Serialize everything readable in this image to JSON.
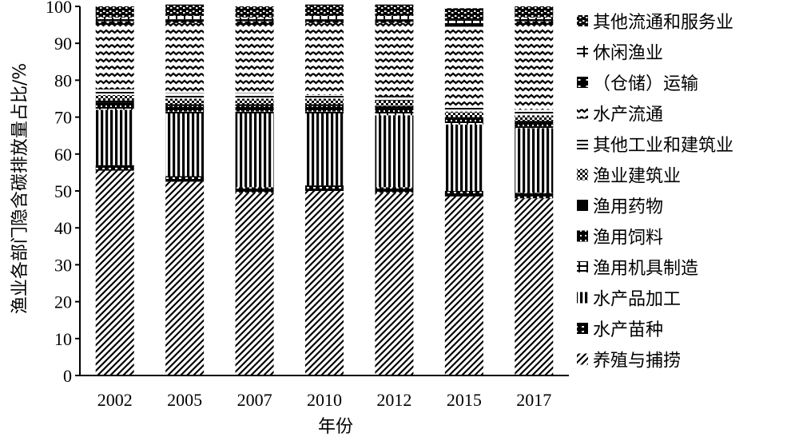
{
  "chart_data": {
    "type": "bar",
    "stacked": true,
    "title": "",
    "xlabel": "年份",
    "ylabel": "渔业各部门隐含碳排放量占比/%",
    "ylim": [
      0,
      100
    ],
    "yticks": [
      0,
      10,
      20,
      30,
      40,
      50,
      60,
      70,
      80,
      90,
      100
    ],
    "grid": false,
    "legend_position": "right",
    "categories": [
      "2002",
      "2005",
      "2007",
      "2010",
      "2012",
      "2015",
      "2017"
    ],
    "series": [
      {
        "name": "养殖与捕捞",
        "values": [
          55.5,
          52.5,
          49.5,
          50.0,
          49.5,
          48.5,
          48.0
        ]
      },
      {
        "name": "水产苗种",
        "values": [
          1.5,
          1.5,
          1.5,
          1.5,
          1.5,
          1.5,
          1.5
        ]
      },
      {
        "name": "水产品加工",
        "values": [
          15.0,
          17.0,
          20.0,
          19.5,
          19.5,
          18.0,
          17.5
        ]
      },
      {
        "name": "渔用机具制造",
        "values": [
          0.5,
          0.5,
          0.5,
          0.5,
          0.5,
          0.5,
          0.5
        ]
      },
      {
        "name": "渔用饲料",
        "values": [
          1.5,
          1.5,
          1.5,
          1.5,
          1.5,
          1.0,
          1.0
        ]
      },
      {
        "name": "渔用药物",
        "values": [
          0.5,
          0.5,
          0.5,
          0.5,
          0.5,
          0.5,
          0.5
        ]
      },
      {
        "name": "渔业建筑业",
        "values": [
          1.5,
          1.5,
          1.5,
          1.5,
          1.5,
          1.5,
          1.5
        ]
      },
      {
        "name": "其他工业和建筑业",
        "values": [
          1.5,
          1.5,
          1.5,
          1.0,
          1.0,
          1.0,
          1.5
        ]
      },
      {
        "name": "水产流通",
        "values": [
          17.5,
          19.0,
          18.5,
          19.5,
          20.0,
          22.0,
          23.0
        ]
      },
      {
        "name": "（仓储）运输",
        "values": [
          1.0,
          1.0,
          1.0,
          1.0,
          1.0,
          1.0,
          1.0
        ]
      },
      {
        "name": "休闲渔业",
        "values": [
          1.0,
          1.0,
          1.0,
          1.0,
          1.0,
          1.0,
          1.0
        ]
      },
      {
        "name": "其他流通和服务业",
        "values": [
          3.0,
          3.0,
          3.0,
          3.0,
          3.0,
          3.0,
          3.0
        ]
      }
    ]
  },
  "colors": {
    "ink": "#000000",
    "paper": "#ffffff"
  }
}
